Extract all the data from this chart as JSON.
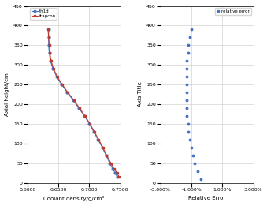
{
  "heights": [
    15,
    25,
    35,
    50,
    70,
    90,
    110,
    130,
    150,
    170,
    190,
    210,
    230,
    250,
    270,
    290,
    310,
    330,
    350,
    370,
    390
  ],
  "th1d_density": [
    0.745,
    0.742,
    0.738,
    0.733,
    0.727,
    0.721,
    0.714,
    0.707,
    0.7,
    0.692,
    0.683,
    0.674,
    0.664,
    0.655,
    0.647,
    0.641,
    0.637,
    0.635,
    0.634,
    0.634,
    0.634
  ],
  "frapcon_density": [
    0.748,
    0.745,
    0.74,
    0.735,
    0.728,
    0.722,
    0.715,
    0.708,
    0.701,
    0.693,
    0.684,
    0.675,
    0.665,
    0.656,
    0.648,
    0.642,
    0.638,
    0.636,
    0.635,
    0.634,
    0.633
  ],
  "err_heights": [
    10,
    30,
    50,
    70,
    90,
    110,
    130,
    150,
    170,
    190,
    210,
    230,
    250,
    270,
    290,
    310,
    330,
    350,
    370,
    390
  ],
  "rel_error": [
    -0.004,
    -0.006,
    -0.008,
    -0.009,
    -0.01,
    -0.011,
    -0.012,
    -0.012,
    -0.013,
    -0.013,
    -0.013,
    -0.013,
    -0.013,
    -0.013,
    -0.013,
    -0.013,
    -0.012,
    -0.012,
    -0.011,
    -0.01
  ],
  "ylim": [
    0,
    450
  ],
  "xlim_density": [
    0.6,
    0.75
  ],
  "xlim_error": [
    -0.03,
    0.03
  ],
  "xticks_density": [
    0.6,
    0.65,
    0.7,
    0.75
  ],
  "xticks_error": [
    -0.03,
    -0.01,
    0.01,
    0.03
  ],
  "yticks": [
    0,
    50,
    100,
    150,
    200,
    250,
    300,
    350,
    400,
    450
  ],
  "ylabel_left": "Axial height/cm",
  "ylabel_right": "Axis Title",
  "xlabel_left": "Coolant density/g/cm³",
  "xlabel_right": "Relative Error",
  "legend_th1d": "th1d",
  "legend_frapcon": "frapcon",
  "legend_error": "relative error",
  "color_th1d": "#4472C4",
  "color_frapcon": "#C0392B",
  "color_error": "#4472C4",
  "background": "#FFFFFF",
  "grid_color": "#C8C8C8"
}
